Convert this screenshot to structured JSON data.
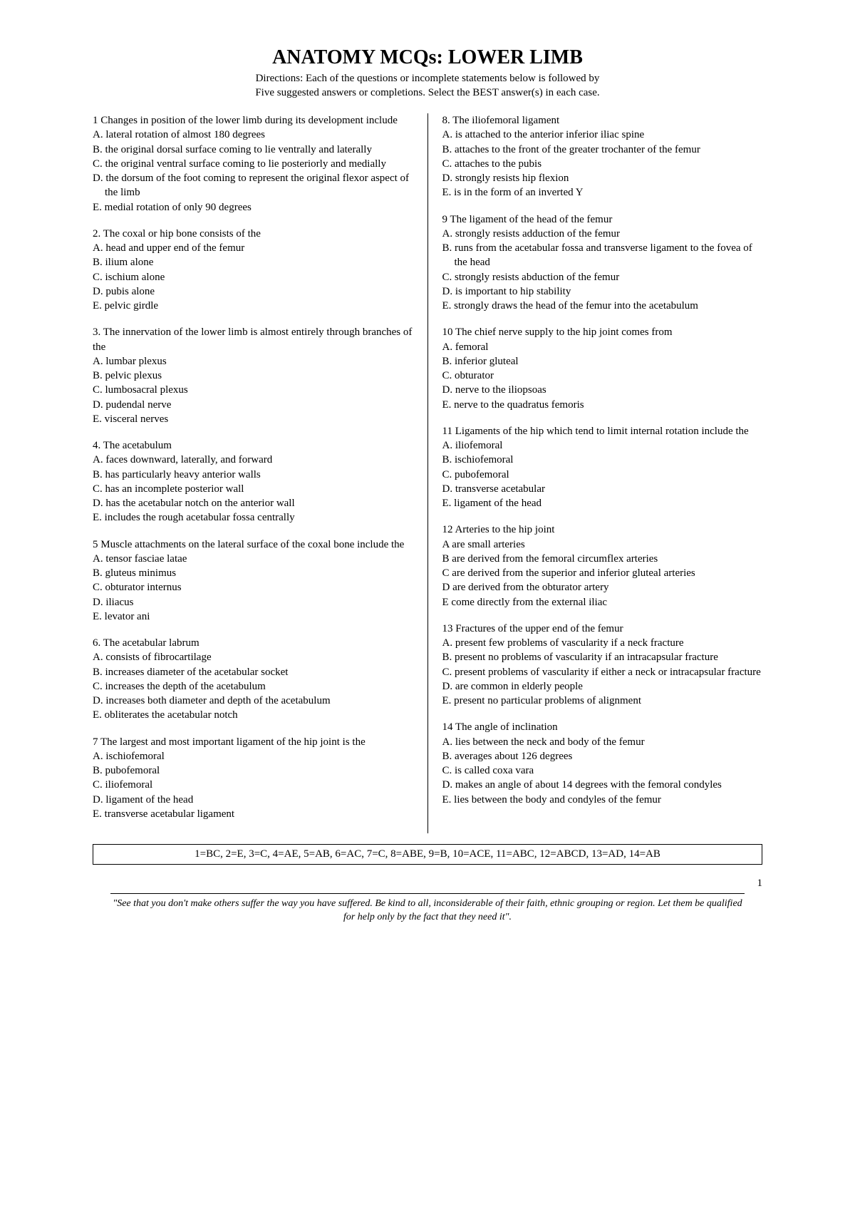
{
  "title": "ANATOMY MCQs:  LOWER LIMB",
  "directions_line1": "Directions: Each of the questions or incomplete statements below is followed by",
  "directions_line2": "Five suggested answers or completions. Select the BEST answer(s) in each case.",
  "left_questions": [
    {
      "num": "1",
      "stem": "Changes in position of the lower limb during its development include",
      "options": [
        "A. lateral rotation of almost 180 degrees",
        "B. the original dorsal surface coming to lie ventrally and laterally",
        "C. the original ventral surface coming to lie posteriorly and medially",
        "D. the dorsum of the foot coming to represent the original flexor aspect of the limb",
        "E. medial rotation of only 90 degrees"
      ]
    },
    {
      "num": "2.",
      "stem": "The coxal or hip bone consists of the",
      "options": [
        "A. head and upper end of the femur",
        "B. ilium alone",
        "C. ischium alone",
        "D. pubis alone",
        "E. pelvic girdle"
      ]
    },
    {
      "num": "3.",
      "stem": "The innervation of the lower limb is almost entirely through branches of the",
      "options": [
        "A. lumbar plexus",
        "B. pelvic plexus",
        "C. lumbosacral plexus",
        "D. pudendal nerve",
        "E. visceral nerves"
      ]
    },
    {
      "num": "4.",
      "stem": "The acetabulum",
      "options": [
        "A. faces downward, laterally, and forward",
        "B. has particularly  heavy  anterior walls",
        "C. has an incomplete posterior wall",
        "D. has the acetabular notch on the anterior wall",
        "E. includes the rough acetabular fossa centrally"
      ]
    },
    {
      "num": "5",
      "stem": "Muscle attachments on the lateral surface of the coxal bone include the",
      "options": [
        "A. tensor fasciae latae",
        "B. gluteus minimus",
        "C. obturator internus",
        "D. iliacus",
        "E. levator ani"
      ]
    },
    {
      "num": "6.",
      "stem": "The acetabular labrum",
      "options": [
        "A. consists of fibrocartilage",
        "B. increases diameter of the acetabular socket",
        "C. increases the depth of the acetabulum",
        "D. increases both diameter and depth of the acetabulum",
        "E. obliterates the acetabular notch"
      ]
    },
    {
      "num": "7",
      "stem": "The largest and most important ligament of the hip joint is the",
      "options": [
        "A. ischiofemoral",
        "B. pubofemoral",
        "C. iliofemoral",
        "D. ligament of the head",
        "E. transverse acetabular ligament"
      ]
    }
  ],
  "right_questions": [
    {
      "num": "8.",
      "stem": "The iliofemoral ligament",
      "options": [
        "A. is attached to the anterior inferior iliac spine",
        "B. attaches to the front of the greater trochanter of the femur",
        "C. attaches to the pubis",
        "D. strongly resists hip flexion",
        "E. is in the form of an inverted Y"
      ]
    },
    {
      "num": "9",
      "stem": "The ligament of the head of the femur",
      "options": [
        "A. strongly resists adduction of the femur",
        "B. runs from the acetabular fossa and transverse ligament to the fovea of the head",
        "C. strongly resists abduction of the femur",
        "D. is important to hip stability",
        "E. strongly draws the head of the femur into the acetabulum"
      ]
    },
    {
      "num": "10",
      "stem": "The chief nerve supply to the hip joint comes from",
      "options": [
        "A. femoral",
        "B. inferior gluteal",
        "C. obturator",
        "D. nerve to the iliopsoas",
        "E. nerve to the quadratus femoris"
      ]
    },
    {
      "num": "11",
      "stem": "Ligaments of the hip which tend to limit internal rotation include the",
      "options": [
        "A. iliofemoral",
        "B. ischiofemoral",
        "C. pubofemoral",
        "D. transverse acetabular",
        "E. ligament of the head"
      ]
    },
    {
      "num": "12",
      "stem": "Arteries to the hip joint",
      "options": [
        "A  are small arteries",
        "B  are derived from the femoral circumflex arteries",
        "C  are derived from the superior and inferior gluteal arteries",
        "D  are derived from the obturator artery",
        "E  come directly from the external iliac"
      ]
    },
    {
      "num": "13",
      "stem": "Fractures of the upper end of the femur",
      "options": [
        "A. present few problems of vascularity if a neck fracture",
        "B. present no problems of vascularity if an intracapsular fracture",
        "C. present problems of vascularity if either a neck or intracapsular fracture",
        "D. are common in elderly people",
        "E. present no particular problems of alignment"
      ]
    },
    {
      "num": "14",
      "stem": "The angle of inclination",
      "options": [
        "A. lies between the neck and body of the femur",
        "B. averages about 126 degrees",
        "C. is called coxa vara",
        "D. makes an angle of about 14 degrees with the femoral condyles",
        "E. lies between the body and condyles of the femur"
      ]
    }
  ],
  "answer_key": "1=BC, 2=E, 3=C, 4=AE, 5=AB, 6=AC, 7=C, 8=ABE, 9=B, 10=ACE, 11=ABC, 12=ABCD, 13=AD, 14=AB",
  "page_number": "1",
  "footer_quote": "\"See that you don't make others suffer the way you have suffered. Be kind to all, inconsiderable of their faith, ethnic grouping or region. Let them be qualified for help only by the fact that they need it\"."
}
